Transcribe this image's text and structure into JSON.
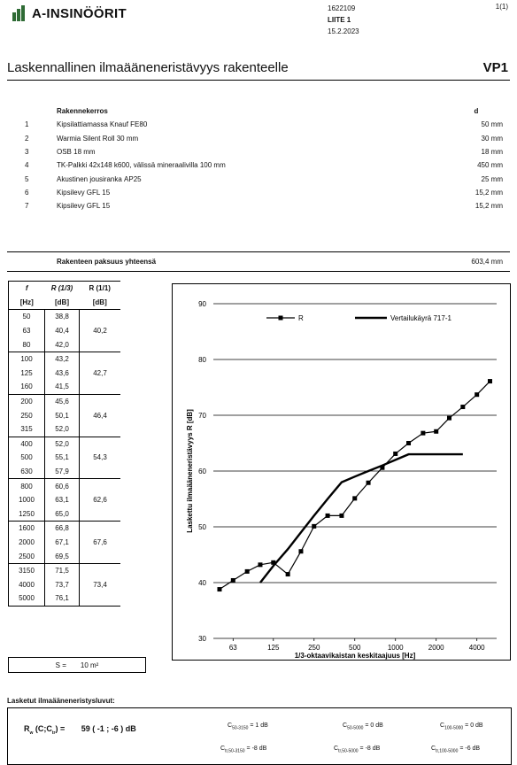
{
  "header": {
    "company": "A-INSINÖÖRIT",
    "project_no": "1622109",
    "attachment": "LIITE 1",
    "date": "15.2.2023",
    "page": "1(1)"
  },
  "title": "Laskennallinen ilmaääneneristävyys rakenteelle",
  "code": "VP1",
  "layers_header": {
    "desc": "Rakennekerros",
    "thk": "d"
  },
  "layers": [
    {
      "num": "1",
      "desc": "Kipsilattiamassa Knauf FE80",
      "thk": "50 mm"
    },
    {
      "num": "2",
      "desc": "Warmia Silent Roll 30 mm",
      "thk": "30 mm"
    },
    {
      "num": "3",
      "desc": "OSB 18 mm",
      "thk": "18 mm"
    },
    {
      "num": "4",
      "desc": "TK-Palkki 42x148 k600, välissä mineraalivilla 100 mm",
      "thk": "450 mm"
    },
    {
      "num": "5",
      "desc": "Akustinen jousirankа AP25",
      "thk": "25 mm"
    },
    {
      "num": "6",
      "desc": "Kipsilevy GFL 15",
      "thk": "15,2 mm"
    },
    {
      "num": "7",
      "desc": "Kipsilevy GFL 15",
      "thk": "15,2 mm"
    }
  ],
  "total": {
    "label": "Rakenteen paksuus yhteensä",
    "value": "603,4 mm"
  },
  "table": {
    "headers": [
      "f",
      "R (1/3)",
      "R (1/1)"
    ],
    "units": [
      "[Hz]",
      "[dB]",
      "[dB]"
    ],
    "rows": [
      [
        "50",
        "38,8",
        ""
      ],
      [
        "63",
        "40,4",
        "40,2"
      ],
      [
        "80",
        "42,0",
        ""
      ],
      [
        "100",
        "43,2",
        ""
      ],
      [
        "125",
        "43,6",
        "42,7"
      ],
      [
        "160",
        "41,5",
        ""
      ],
      [
        "200",
        "45,6",
        ""
      ],
      [
        "250",
        "50,1",
        "46,4"
      ],
      [
        "315",
        "52,0",
        ""
      ],
      [
        "400",
        "52,0",
        ""
      ],
      [
        "500",
        "55,1",
        "54,3"
      ],
      [
        "630",
        "57,9",
        ""
      ],
      [
        "800",
        "60,6",
        ""
      ],
      [
        "1000",
        "63,1",
        "62,6"
      ],
      [
        "1250",
        "65,0",
        ""
      ],
      [
        "1600",
        "66,8",
        ""
      ],
      [
        "2000",
        "67,1",
        "67,6"
      ],
      [
        "2500",
        "69,5",
        ""
      ],
      [
        "3150",
        "71,5",
        ""
      ],
      [
        "4000",
        "73,7",
        "73,4"
      ],
      [
        "5000",
        "76,1",
        ""
      ]
    ]
  },
  "area": {
    "label": "S =",
    "value": "10 m²"
  },
  "chart_data": {
    "type": "line",
    "ylabel": "Laskettu ilmaääneneristävyys R [dB]",
    "xlabel": "1/3-oktaavikaistan keskitaajuus [Hz]",
    "ylim": [
      30,
      90
    ],
    "yticks": [
      "30",
      "40",
      "50",
      "60",
      "70",
      "80",
      "90"
    ],
    "xticks": [
      "63",
      "125",
      "250",
      "500",
      "1000",
      "2000",
      "4000"
    ],
    "x": [
      50,
      63,
      80,
      100,
      125,
      160,
      200,
      250,
      315,
      400,
      500,
      630,
      800,
      1000,
      1250,
      1600,
      2000,
      2500,
      3150,
      4000,
      5000
    ],
    "series": [
      {
        "name": "R",
        "values": [
          38.8,
          40.4,
          42.0,
          43.2,
          43.6,
          41.5,
          45.6,
          50.1,
          52.0,
          52.0,
          55.1,
          57.9,
          60.6,
          63.1,
          65.0,
          66.8,
          67.1,
          69.5,
          71.5,
          73.7,
          76.1
        ]
      },
      {
        "name": "Vertailukäyrä 717-1",
        "x": [
          100,
          125,
          160,
          200,
          250,
          315,
          400,
          500,
          630,
          800,
          1000,
          1250,
          1600,
          2000,
          2500,
          3150
        ],
        "values": [
          40,
          43,
          46,
          49,
          52,
          55,
          58,
          59,
          60,
          61,
          62,
          63,
          63,
          63,
          63,
          63
        ]
      }
    ],
    "legend": "top",
    "grid": true
  },
  "results": {
    "title": "Lasketut ilmaääneneristysluvut:",
    "rw_label": "R",
    "rw_sub": "w",
    "rw_c": "C",
    "rw_ctr": "C",
    "rw_ctr_sub": "tr",
    "rw_value": "59 ( -1 ; -6 ) dB",
    "c_items": [
      {
        "label": "C",
        "sub": "50-3150",
        "value": "= 1 dB"
      },
      {
        "label": "C",
        "sub": "50-5000",
        "value": "= 0 dB"
      },
      {
        "label": "C",
        "sub": "100-5000",
        "value": "= 0 dB"
      },
      {
        "label": "C",
        "sub": "tr,50-3150",
        "value": "= -8 dB"
      },
      {
        "label": "C",
        "sub": "tr,50-5000",
        "value": "= -8 dB"
      },
      {
        "label": "C",
        "sub": "tr,100-5000",
        "value": "= -6 dB"
      }
    ]
  }
}
